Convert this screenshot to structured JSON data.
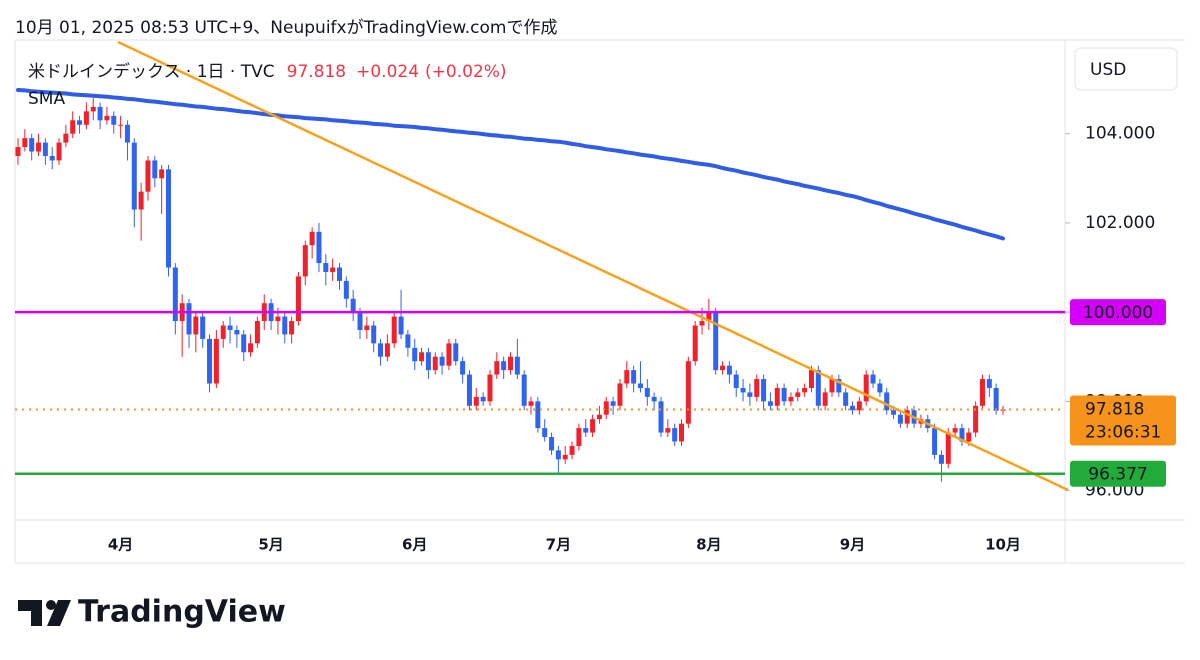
{
  "header": "10月 01, 2025 08:53 UTC+9、NeupuifxがTradingView.comで作成",
  "currency": "USD",
  "brand": "TradingView",
  "chart_data": {
    "type": "candlestick",
    "title": "米ドルインデックス · 1日 · TVC",
    "change": "+0.024",
    "change_percent": "(+0.02%)",
    "change_color": "#f23645",
    "categories": [
      null,
      null,
      null,
      null,
      null,
      null,
      null,
      null,
      null,
      null,
      null,
      null,
      null,
      null,
      null,
      "4月",
      null,
      null,
      null,
      null,
      null,
      null,
      null,
      null,
      null,
      null,
      null,
      null,
      null,
      null,
      null,
      null,
      null,
      null,
      null,
      null,
      null,
      "5月",
      null,
      null,
      null,
      null,
      null,
      null,
      null,
      null,
      null,
      null,
      null,
      null,
      null,
      null,
      null,
      null,
      null,
      null,
      null,
      null,
      "6月",
      null,
      null,
      null,
      null,
      null,
      null,
      null,
      null,
      null,
      null,
      null,
      null,
      null,
      null,
      null,
      null,
      null,
      null,
      null,
      null,
      "7月",
      null,
      null,
      null,
      null,
      null,
      null,
      null,
      null,
      null,
      null,
      null,
      null,
      null,
      null,
      null,
      null,
      null,
      null,
      null,
      null,
      null,
      "8月",
      null,
      null,
      null,
      null,
      null,
      null,
      null,
      null,
      null,
      null,
      null,
      null,
      null,
      null,
      null,
      null,
      null,
      null,
      null,
      null,
      "9月",
      null,
      null,
      null,
      null,
      null,
      null,
      null,
      null,
      null,
      null,
      null,
      null,
      null,
      null,
      null,
      null,
      null,
      null,
      null,
      null,
      null,
      "10月"
    ],
    "series": [
      {
        "name": "米ドルインデックス",
        "up_color": "#f0212a",
        "down_color": "#2f64f0",
        "values": [
          [
            103.5,
            103.9,
            103.3,
            103.7
          ],
          [
            103.7,
            104.1,
            103.6,
            103.9
          ],
          [
            103.9,
            104.0,
            103.4,
            103.6
          ],
          [
            103.6,
            104.0,
            103.5,
            103.8
          ],
          [
            103.8,
            103.9,
            103.3,
            103.5
          ],
          [
            103.5,
            103.7,
            103.2,
            103.4
          ],
          [
            103.4,
            103.9,
            103.3,
            103.8
          ],
          [
            103.8,
            104.2,
            103.7,
            104.0
          ],
          [
            104.0,
            104.5,
            103.9,
            104.3
          ],
          [
            104.3,
            104.4,
            104.0,
            104.2
          ],
          [
            104.2,
            104.7,
            104.1,
            104.5
          ],
          [
            104.5,
            104.8,
            104.3,
            104.6
          ],
          [
            104.6,
            104.7,
            104.1,
            104.3
          ],
          [
            104.3,
            104.6,
            104.2,
            104.4
          ],
          [
            104.4,
            104.5,
            104.0,
            104.2
          ],
          [
            104.2,
            104.4,
            103.9,
            104.2
          ],
          [
            104.2,
            104.3,
            103.4,
            103.8
          ],
          [
            103.8,
            103.9,
            101.9,
            102.3
          ],
          [
            102.3,
            102.9,
            101.6,
            102.7
          ],
          [
            102.7,
            103.5,
            102.5,
            103.4
          ],
          [
            103.4,
            103.5,
            102.8,
            103.0
          ],
          [
            103.0,
            103.3,
            102.2,
            103.2
          ],
          [
            103.2,
            103.3,
            100.8,
            101.0
          ],
          [
            101.0,
            101.1,
            99.5,
            99.8
          ],
          [
            99.8,
            100.4,
            99.0,
            100.2
          ],
          [
            100.2,
            100.3,
            99.2,
            99.5
          ],
          [
            99.5,
            100.0,
            99.1,
            99.9
          ],
          [
            99.9,
            100.0,
            99.2,
            99.4
          ],
          [
            99.4,
            99.5,
            98.2,
            98.4
          ],
          [
            98.4,
            99.6,
            98.3,
            99.4
          ],
          [
            99.4,
            99.8,
            99.2,
            99.7
          ],
          [
            99.7,
            99.9,
            99.3,
            99.6
          ],
          [
            99.6,
            99.7,
            99.2,
            99.5
          ],
          [
            99.5,
            99.6,
            98.9,
            99.1
          ],
          [
            99.1,
            99.5,
            99.0,
            99.3
          ],
          [
            99.3,
            99.9,
            99.2,
            99.8
          ],
          [
            99.8,
            100.4,
            99.6,
            100.2
          ],
          [
            100.2,
            100.3,
            99.6,
            99.8
          ],
          [
            99.8,
            100.1,
            99.5,
            99.9
          ],
          [
            99.9,
            100.0,
            99.3,
            99.5
          ],
          [
            99.5,
            99.9,
            99.3,
            99.8
          ],
          [
            99.8,
            100.9,
            99.7,
            100.8
          ],
          [
            100.8,
            101.6,
            100.6,
            101.5
          ],
          [
            101.5,
            101.9,
            101.2,
            101.8
          ],
          [
            101.8,
            102.0,
            100.9,
            101.1
          ],
          [
            101.1,
            101.3,
            100.6,
            100.9
          ],
          [
            100.9,
            101.2,
            100.7,
            101.0
          ],
          [
            101.0,
            101.1,
            100.5,
            100.7
          ],
          [
            100.7,
            100.8,
            100.1,
            100.3
          ],
          [
            100.3,
            100.5,
            99.8,
            100.0
          ],
          [
            100.0,
            100.1,
            99.4,
            99.6
          ],
          [
            99.6,
            99.9,
            99.4,
            99.7
          ],
          [
            99.7,
            99.8,
            99.1,
            99.3
          ],
          [
            99.3,
            99.4,
            98.8,
            99.0
          ],
          [
            99.0,
            99.5,
            98.9,
            99.3
          ],
          [
            99.3,
            100.0,
            99.2,
            99.9
          ],
          [
            99.9,
            100.5,
            99.4,
            99.5
          ],
          [
            99.5,
            99.6,
            99.0,
            99.2
          ],
          [
            99.2,
            99.4,
            98.7,
            98.9
          ],
          [
            98.9,
            99.2,
            98.8,
            99.1
          ],
          [
            99.1,
            99.2,
            98.5,
            98.7
          ],
          [
            98.7,
            99.1,
            98.6,
            99.0
          ],
          [
            99.0,
            99.1,
            98.6,
            98.8
          ],
          [
            98.8,
            99.4,
            98.7,
            99.3
          ],
          [
            99.3,
            99.4,
            98.8,
            98.9
          ],
          [
            98.9,
            99.0,
            98.4,
            98.6
          ],
          [
            98.6,
            98.7,
            97.8,
            97.9
          ],
          [
            97.9,
            98.3,
            97.8,
            98.1
          ],
          [
            98.1,
            98.2,
            97.9,
            98.0
          ],
          [
            98.0,
            98.7,
            97.9,
            98.6
          ],
          [
            98.6,
            99.1,
            98.5,
            98.9
          ],
          [
            98.9,
            99.0,
            98.5,
            98.7
          ],
          [
            98.7,
            99.1,
            98.6,
            99.0
          ],
          [
            99.0,
            99.4,
            98.5,
            98.6
          ],
          [
            98.6,
            98.7,
            97.8,
            97.9
          ],
          [
            97.9,
            98.1,
            97.7,
            98.0
          ],
          [
            98.0,
            98.1,
            97.3,
            97.4
          ],
          [
            97.4,
            97.6,
            97.1,
            97.2
          ],
          [
            97.2,
            97.3,
            96.8,
            96.9
          ],
          [
            96.9,
            97.0,
            96.4,
            96.7
          ],
          [
            96.7,
            97.0,
            96.6,
            96.8
          ],
          [
            96.8,
            97.1,
            96.7,
            97.0
          ],
          [
            97.0,
            97.5,
            96.9,
            97.4
          ],
          [
            97.4,
            97.6,
            97.2,
            97.3
          ],
          [
            97.3,
            97.7,
            97.2,
            97.6
          ],
          [
            97.6,
            97.9,
            97.5,
            97.7
          ],
          [
            97.7,
            98.1,
            97.6,
            98.0
          ],
          [
            98.0,
            98.1,
            97.7,
            97.9
          ],
          [
            97.9,
            98.5,
            97.8,
            98.4
          ],
          [
            98.4,
            98.9,
            98.3,
            98.7
          ],
          [
            98.7,
            98.8,
            98.2,
            98.4
          ],
          [
            98.4,
            98.9,
            98.2,
            98.3
          ],
          [
            98.3,
            98.5,
            97.9,
            98.1
          ],
          [
            98.1,
            98.2,
            97.8,
            98.0
          ],
          [
            98.0,
            98.1,
            97.2,
            97.3
          ],
          [
            97.3,
            97.6,
            97.2,
            97.4
          ],
          [
            97.4,
            97.5,
            97.0,
            97.1
          ],
          [
            97.1,
            97.6,
            97.0,
            97.5
          ],
          [
            97.5,
            99.0,
            97.4,
            98.9
          ],
          [
            98.9,
            99.8,
            98.8,
            99.7
          ],
          [
            99.7,
            100.1,
            99.5,
            99.8
          ],
          [
            99.8,
            100.3,
            99.6,
            100.0
          ],
          [
            100.0,
            100.1,
            98.6,
            98.7
          ],
          [
            98.7,
            98.9,
            98.6,
            98.8
          ],
          [
            98.8,
            98.9,
            98.4,
            98.6
          ],
          [
            98.6,
            98.7,
            98.1,
            98.3
          ],
          [
            98.3,
            98.5,
            98.0,
            98.2
          ],
          [
            98.2,
            98.4,
            97.9,
            98.1
          ],
          [
            98.1,
            98.6,
            98.0,
            98.5
          ],
          [
            98.5,
            98.6,
            97.8,
            98.0
          ],
          [
            98.0,
            98.2,
            97.8,
            97.9
          ],
          [
            97.9,
            98.4,
            97.8,
            98.3
          ],
          [
            98.3,
            98.4,
            97.9,
            98.0
          ],
          [
            98.0,
            98.2,
            97.9,
            98.1
          ],
          [
            98.1,
            98.3,
            98.0,
            98.2
          ],
          [
            98.2,
            98.4,
            98.1,
            98.3
          ],
          [
            98.3,
            98.8,
            98.2,
            98.7
          ],
          [
            98.7,
            98.8,
            97.8,
            97.9
          ],
          [
            97.9,
            98.3,
            97.8,
            98.2
          ],
          [
            98.2,
            98.6,
            98.1,
            98.5
          ],
          [
            98.5,
            98.6,
            98.1,
            98.2
          ],
          [
            98.2,
            98.3,
            97.8,
            97.9
          ],
          [
            97.9,
            98.0,
            97.7,
            97.8
          ],
          [
            97.8,
            98.1,
            97.7,
            98.0
          ],
          [
            98.0,
            98.7,
            97.9,
            98.6
          ],
          [
            98.6,
            98.7,
            98.3,
            98.4
          ],
          [
            98.4,
            98.5,
            98.1,
            98.2
          ],
          [
            98.2,
            98.3,
            97.7,
            97.8
          ],
          [
            97.8,
            97.9,
            97.6,
            97.7
          ],
          [
            97.7,
            97.8,
            97.4,
            97.5
          ],
          [
            97.5,
            97.9,
            97.4,
            97.8
          ],
          [
            97.8,
            97.9,
            97.4,
            97.5
          ],
          [
            97.5,
            97.7,
            97.4,
            97.6
          ],
          [
            97.6,
            97.7,
            97.3,
            97.4
          ],
          [
            97.4,
            97.5,
            96.7,
            96.8
          ],
          [
            96.8,
            96.9,
            96.2,
            96.6
          ],
          [
            96.6,
            97.4,
            96.5,
            97.3
          ],
          [
            97.3,
            97.5,
            97.2,
            97.4
          ],
          [
            97.4,
            97.5,
            97.0,
            97.1
          ],
          [
            97.1,
            97.4,
            97.0,
            97.3
          ],
          [
            97.3,
            98.0,
            97.2,
            97.9
          ],
          [
            97.9,
            98.6,
            97.8,
            98.5
          ],
          [
            98.5,
            98.6,
            98.1,
            98.3
          ],
          [
            98.3,
            98.4,
            97.7,
            97.79
          ],
          [
            97.79,
            97.9,
            97.7,
            97.818
          ]
        ]
      },
      {
        "name": "SMA",
        "type": "line",
        "color": "#2f5ce8",
        "values": [
          104.98,
          104.97,
          104.95,
          104.94,
          104.93,
          104.92,
          104.91,
          104.9,
          104.88,
          104.87,
          104.86,
          104.85,
          104.84,
          104.83,
          104.81,
          104.8,
          104.78,
          104.77,
          104.75,
          104.73,
          104.72,
          104.7,
          104.68,
          104.66,
          104.65,
          104.63,
          104.61,
          104.6,
          104.58,
          104.56,
          104.55,
          104.53,
          104.51,
          104.49,
          104.48,
          104.46,
          104.44,
          104.42,
          104.41,
          104.39,
          104.38,
          104.37,
          104.35,
          104.34,
          104.33,
          104.32,
          104.3,
          104.29,
          104.28,
          104.26,
          104.25,
          104.24,
          104.22,
          104.21,
          104.2,
          104.18,
          104.17,
          104.16,
          104.15,
          104.13,
          104.12,
          104.1,
          104.09,
          104.07,
          104.05,
          104.04,
          104.02,
          104.01,
          103.99,
          103.97,
          103.96,
          103.94,
          103.93,
          103.91,
          103.89,
          103.88,
          103.86,
          103.85,
          103.83,
          103.82,
          103.8,
          103.77,
          103.75,
          103.72,
          103.7,
          103.68,
          103.65,
          103.63,
          103.61,
          103.58,
          103.56,
          103.53,
          103.51,
          103.49,
          103.46,
          103.44,
          103.42,
          103.39,
          103.37,
          103.34,
          103.32,
          103.3,
          103.27,
          103.23,
          103.2,
          103.17,
          103.13,
          103.1,
          103.07,
          103.03,
          103.0,
          102.97,
          102.93,
          102.9,
          102.87,
          102.83,
          102.8,
          102.77,
          102.73,
          102.7,
          102.67,
          102.63,
          102.6,
          102.56,
          102.51,
          102.47,
          102.43,
          102.38,
          102.34,
          102.3,
          102.26,
          102.21,
          102.17,
          102.13,
          102.08,
          102.04,
          102.0,
          101.96,
          101.91,
          101.87,
          101.83,
          101.78,
          101.74,
          101.7,
          101.65
        ]
      }
    ],
    "ylim": [
      95.34,
      106.1
    ],
    "yticks": [
      {
        "value": 96,
        "label": "96.000"
      },
      {
        "value": 98,
        "label": "98.000"
      },
      {
        "value": 100,
        "label": "100.000"
      },
      {
        "value": 102,
        "label": "102.000"
      },
      {
        "value": 104,
        "label": "104.000"
      }
    ],
    "hlines": [
      {
        "value": 100,
        "label": "100.000",
        "color": "#d500f9"
      },
      {
        "value": 96.377,
        "label": "96.377",
        "color": "#22ab3a"
      }
    ],
    "last_price": {
      "value": 97.818,
      "label": "97.818",
      "countdown": "23:06:31",
      "color": "#f7931a"
    }
  }
}
